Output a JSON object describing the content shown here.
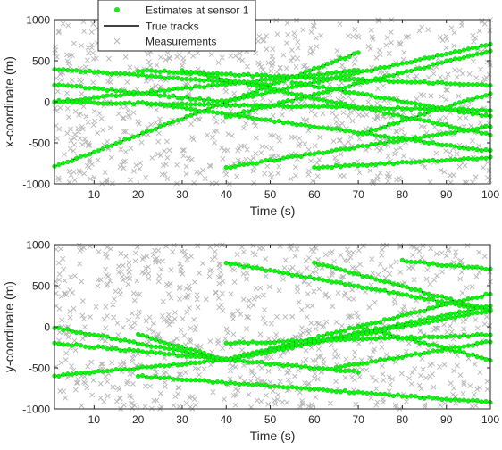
{
  "colors": {
    "estimate": "#00ff00",
    "estimate_edge": "#2ca02c",
    "track": "#000000",
    "measurement": "#b5b5b5",
    "axes": "#262626",
    "background": "#ffffff"
  },
  "legend": {
    "location": "top, overlapping upper panel",
    "items": [
      {
        "label": "Estimates at sensor 1",
        "marker": "dot",
        "color": "#00ff00"
      },
      {
        "label": "True tracks",
        "marker": "line",
        "color": "#000000"
      },
      {
        "label": "Measurements",
        "marker": "x",
        "color": "#b5b5b5"
      }
    ]
  },
  "chart_data": [
    {
      "type": "scatter",
      "xlabel": "Time (s)",
      "ylabel": "x-coordinate (m)",
      "xlim": [
        1,
        100
      ],
      "ylim": [
        -1000,
        1000
      ],
      "xticks": [
        10,
        20,
        30,
        40,
        50,
        60,
        70,
        80,
        90,
        100
      ],
      "yticks": [
        -1000,
        -500,
        0,
        500,
        1000
      ],
      "grid": false,
      "tracks": [
        {
          "t0": 1,
          "t1": 50,
          "v0": 400,
          "v1": 200
        },
        {
          "t0": 20,
          "t1": 100,
          "v0": 380,
          "v1": 200
        },
        {
          "t0": 1,
          "t1": 70,
          "v0": 0,
          "v1": 380
        },
        {
          "t0": 1,
          "t1": 100,
          "v0": 0,
          "v1": -100
        },
        {
          "t0": 1,
          "t1": 70,
          "v0": -790,
          "v1": 600
        },
        {
          "t0": 1,
          "t1": 40,
          "v0": 210,
          "v1": 0
        },
        {
          "t0": 40,
          "t1": 100,
          "v0": 0,
          "v1": 700
        },
        {
          "t0": 20,
          "t1": 100,
          "v0": 0,
          "v1": -600
        },
        {
          "t0": 40,
          "t1": 100,
          "v0": -180,
          "v1": 620
        },
        {
          "t0": 30,
          "t1": 100,
          "v0": 380,
          "v1": -400
        },
        {
          "t0": 40,
          "t1": 100,
          "v0": -800,
          "v1": -300
        },
        {
          "t0": 60,
          "t1": 100,
          "v0": -800,
          "v1": -680
        },
        {
          "t0": 55,
          "t1": 100,
          "v0": 240,
          "v1": -180
        },
        {
          "t0": 70,
          "t1": 100,
          "v0": -400,
          "v1": 100
        }
      ]
    },
    {
      "type": "scatter",
      "xlabel": "Time (s)",
      "ylabel": "y-coordinate (m)",
      "xlim": [
        1,
        100
      ],
      "ylim": [
        -1000,
        1000
      ],
      "xticks": [
        10,
        20,
        30,
        40,
        50,
        60,
        70,
        80,
        90,
        100
      ],
      "yticks": [
        -1000,
        -500,
        0,
        500,
        1000
      ],
      "grid": false,
      "tracks": [
        {
          "t0": 40,
          "t1": 100,
          "v0": 780,
          "v1": 200
        },
        {
          "t0": 60,
          "t1": 100,
          "v0": 780,
          "v1": 200
        },
        {
          "t0": 80,
          "t1": 100,
          "v0": 800,
          "v1": 700
        },
        {
          "t0": 1,
          "t1": 40,
          "v0": -10,
          "v1": -400
        },
        {
          "t0": 1,
          "t1": 40,
          "v0": -200,
          "v1": -400
        },
        {
          "t0": 1,
          "t1": 40,
          "v0": -600,
          "v1": -400
        },
        {
          "t0": 20,
          "t1": 40,
          "v0": -100,
          "v1": -400
        },
        {
          "t0": 40,
          "t1": 100,
          "v0": -400,
          "v1": 400
        },
        {
          "t0": 40,
          "t1": 100,
          "v0": -400,
          "v1": 250
        },
        {
          "t0": 40,
          "t1": 100,
          "v0": -400,
          "v1": 200
        },
        {
          "t0": 40,
          "t1": 70,
          "v0": -400,
          "v1": -550
        },
        {
          "t0": 20,
          "t1": 100,
          "v0": -600,
          "v1": -920
        },
        {
          "t0": 40,
          "t1": 100,
          "v0": -200,
          "v1": -100
        },
        {
          "t0": 70,
          "t1": 100,
          "v0": 0,
          "v1": -400
        },
        {
          "t0": 65,
          "t1": 100,
          "v0": -500,
          "v1": -180
        }
      ]
    }
  ]
}
